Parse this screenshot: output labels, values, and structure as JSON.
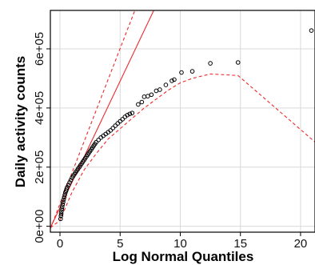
{
  "chart_data": {
    "type": "scatter",
    "title": "",
    "xlabel": "Log Normal Quantiles",
    "ylabel": "Daily activity counts",
    "xlim": [
      -0.8,
      21.2
    ],
    "ylim": [
      -20000,
      730000
    ],
    "x_ticks": [
      0,
      5,
      10,
      15,
      20
    ],
    "x_tick_labels": [
      "0",
      "5",
      "10",
      "15",
      "20"
    ],
    "y_ticks": [
      0,
      200000,
      400000,
      600000
    ],
    "y_tick_labels": [
      "0e+00",
      "2e+05",
      "4e+05",
      "6e+05"
    ],
    "grid": true,
    "series": [
      {
        "role": "observed",
        "marker": "open-circle",
        "points": [
          [
            0.05,
            25000
          ],
          [
            0.08,
            35000
          ],
          [
            0.1,
            42000
          ],
          [
            0.12,
            50000
          ],
          [
            0.15,
            58000
          ],
          [
            0.18,
            66000
          ],
          [
            0.22,
            74000
          ],
          [
            0.26,
            82000
          ],
          [
            0.3,
            90000
          ],
          [
            0.35,
            98000
          ],
          [
            0.4,
            106000
          ],
          [
            0.45,
            114000
          ],
          [
            0.5,
            120000
          ],
          [
            0.55,
            126000
          ],
          [
            0.6,
            132000
          ],
          [
            0.7,
            140000
          ],
          [
            0.8,
            148000
          ],
          [
            0.9,
            156000
          ],
          [
            1.0,
            164000
          ],
          [
            1.1,
            170000
          ],
          [
            1.2,
            176000
          ],
          [
            1.3,
            182000
          ],
          [
            1.4,
            188000
          ],
          [
            1.5,
            194000
          ],
          [
            1.6,
            200000
          ],
          [
            1.7,
            206000
          ],
          [
            1.8,
            212000
          ],
          [
            1.9,
            218000
          ],
          [
            2.0,
            224000
          ],
          [
            2.1,
            230000
          ],
          [
            2.2,
            236000
          ],
          [
            2.3,
            242000
          ],
          [
            2.4,
            248000
          ],
          [
            2.5,
            254000
          ],
          [
            2.6,
            260000
          ],
          [
            2.7,
            266000
          ],
          [
            2.8,
            272000
          ],
          [
            2.9,
            278000
          ],
          [
            3.0,
            284000
          ],
          [
            3.2,
            292000
          ],
          [
            3.4,
            300000
          ],
          [
            3.6,
            306000
          ],
          [
            3.8,
            312000
          ],
          [
            4.0,
            318000
          ],
          [
            4.2,
            324000
          ],
          [
            4.4,
            332000
          ],
          [
            4.6,
            340000
          ],
          [
            4.8,
            348000
          ],
          [
            5.0,
            355000
          ],
          [
            5.2,
            362000
          ],
          [
            5.4,
            370000
          ],
          [
            5.6,
            376000
          ],
          [
            5.8,
            380000
          ],
          [
            6.0,
            383000
          ],
          [
            6.5,
            412000
          ],
          [
            6.8,
            420000
          ],
          [
            7.0,
            438000
          ],
          [
            7.3,
            440000
          ],
          [
            7.6,
            445000
          ],
          [
            8.0,
            458000
          ],
          [
            8.3,
            462000
          ],
          [
            8.8,
            478000
          ],
          [
            9.3,
            492000
          ],
          [
            9.5,
            496000
          ],
          [
            10.1,
            520000
          ],
          [
            11.0,
            524000
          ],
          [
            12.5,
            551000
          ],
          [
            14.8,
            554000
          ],
          [
            20.9,
            662000
          ]
        ]
      },
      {
        "role": "reference-line",
        "style": "solid",
        "color": "#ee2a2a",
        "points": [
          [
            -0.8,
            -5000
          ],
          [
            8.5,
            790000
          ]
        ]
      },
      {
        "role": "upper-envelope",
        "style": "dashed",
        "color": "#ee2a2a",
        "points": [
          [
            -0.8,
            -8000
          ],
          [
            6.8,
            790000
          ]
        ]
      },
      {
        "role": "lower-envelope",
        "style": "dashed",
        "color": "#ee2a2a",
        "points": [
          [
            -0.8,
            -5000
          ],
          [
            0,
            20000
          ],
          [
            1,
            115000
          ],
          [
            2,
            190000
          ],
          [
            3,
            245000
          ],
          [
            4,
            295000
          ],
          [
            5,
            330000
          ],
          [
            6,
            365000
          ],
          [
            7,
            400000
          ],
          [
            8,
            430000
          ],
          [
            9,
            460000
          ],
          [
            10,
            485000
          ],
          [
            11,
            500000
          ],
          [
            12.5,
            515000
          ],
          [
            14.8,
            510000
          ],
          [
            21.2,
            285000
          ]
        ]
      }
    ]
  }
}
